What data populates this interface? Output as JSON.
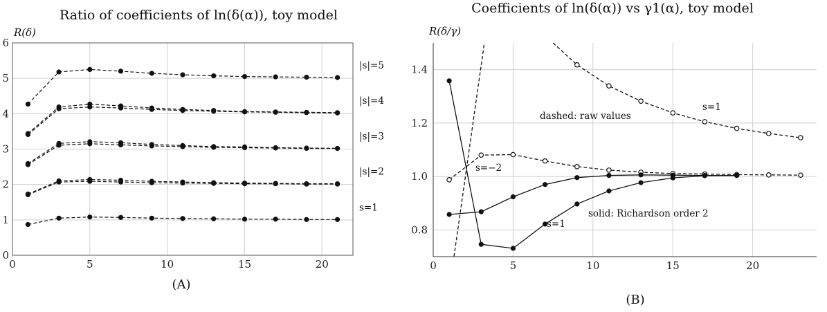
{
  "chart_data": [
    {
      "type": "line",
      "title": "Ratio of coefficients of ln(δ(α)), toy model",
      "ylabel": "R(δ)",
      "xlabel": "",
      "caption": "(A)",
      "xlim": [
        0,
        22
      ],
      "ylim": [
        0,
        6
      ],
      "xticks": [
        "0",
        "5",
        "10",
        "15",
        "20"
      ],
      "yticks": [
        "0",
        "1",
        "2",
        "3",
        "4",
        "5",
        "6"
      ],
      "grid": true,
      "x": [
        1,
        3,
        5,
        7,
        9,
        11,
        13,
        15,
        17,
        19,
        21
      ],
      "series": [
        {
          "name": "|s|=5",
          "style": "dashed",
          "values": [
            4.27,
            5.18,
            5.25,
            5.2,
            5.14,
            5.1,
            5.07,
            5.05,
            5.04,
            5.03,
            5.02
          ]
        },
        {
          "name": "|s|=4",
          "style": "dashed",
          "values": [
            3.44,
            4.19,
            4.27,
            4.22,
            4.16,
            4.12,
            4.09,
            4.06,
            4.05,
            4.04,
            4.03
          ]
        },
        {
          "name": "",
          "style": "dashed",
          "values": [
            3.41,
            4.14,
            4.19,
            4.16,
            4.12,
            4.09,
            4.07,
            4.05,
            4.04,
            4.03,
            4.02
          ]
        },
        {
          "name": "|s|=3",
          "style": "dashed",
          "values": [
            2.59,
            3.16,
            3.21,
            3.18,
            3.13,
            3.1,
            3.07,
            3.06,
            3.04,
            3.03,
            3.02
          ]
        },
        {
          "name": "",
          "style": "dashed",
          "values": [
            2.56,
            3.11,
            3.15,
            3.12,
            3.09,
            3.07,
            3.05,
            3.04,
            3.03,
            3.02,
            3.02
          ]
        },
        {
          "name": "|s|=2",
          "style": "dashed",
          "values": [
            1.73,
            2.1,
            2.14,
            2.12,
            2.09,
            2.07,
            2.05,
            2.04,
            2.03,
            2.02,
            2.02
          ]
        },
        {
          "name": "",
          "style": "dashed",
          "values": [
            1.71,
            2.07,
            2.09,
            2.07,
            2.05,
            2.04,
            2.03,
            2.02,
            2.02,
            2.01,
            2.01
          ]
        },
        {
          "name": "s=1",
          "style": "dashed",
          "values": [
            0.87,
            1.05,
            1.08,
            1.07,
            1.05,
            1.04,
            1.03,
            1.02,
            1.02,
            1.01,
            1.01
          ]
        }
      ]
    },
    {
      "type": "line",
      "title": "Coefficients of ln(δ(α)) vs γ1(α), toy model",
      "ylabel": "R(δ/γ)",
      "xlabel": "",
      "caption": "(B)",
      "xlim": [
        0,
        24
      ],
      "ylim": [
        0.7,
        1.5
      ],
      "xticks": [
        "0",
        "5",
        "10",
        "15",
        "20"
      ],
      "yticks": [
        "0.8",
        "1.0",
        "1.2",
        "1.4"
      ],
      "grid": true,
      "annotations": [
        "dashed: raw values",
        "solid: Richardson order 2",
        "s=1",
        "s=−2",
        "s=1"
      ],
      "series": [
        {
          "name": "s=1",
          "style": "dashed",
          "marker": "open",
          "x": [
            9,
            11,
            13,
            15,
            17,
            19,
            21,
            23
          ],
          "values": [
            1.418,
            1.339,
            1.282,
            1.238,
            1.205,
            1.18,
            1.161,
            1.145
          ],
          "curve_x": [
            7.5,
            9,
            11,
            13,
            15,
            17,
            19,
            21,
            23
          ],
          "curve_y": [
            1.5,
            1.418,
            1.339,
            1.282,
            1.238,
            1.205,
            1.18,
            1.161,
            1.145
          ]
        },
        {
          "name": "s=−2",
          "style": "dashed",
          "marker": "open",
          "x": [
            1,
            3,
            5,
            7,
            9,
            11,
            13,
            15,
            17,
            19,
            21,
            23
          ],
          "values": [
            0.988,
            1.08,
            1.082,
            1.058,
            1.037,
            1.024,
            1.016,
            1.011,
            1.009,
            1.007,
            1.006,
            1.005
          ]
        },
        {
          "name": "",
          "style": "dashed",
          "marker": "none",
          "x": [
            1.3,
            3.2
          ],
          "values": [
            0.7,
            1.5
          ]
        },
        {
          "name": "",
          "style": "solid",
          "marker": "filled",
          "x": [
            1,
            3,
            5,
            7,
            9,
            11,
            13,
            15,
            17,
            19
          ],
          "values": [
            0.858,
            0.868,
            0.924,
            0.97,
            0.996,
            1.004,
            1.006,
            1.005,
            1.004,
            1.004
          ]
        },
        {
          "name": "s=1",
          "style": "solid",
          "marker": "filled",
          "x": [
            1,
            3,
            5,
            7,
            9,
            11,
            13,
            15,
            17,
            19
          ],
          "values": [
            1.358,
            0.746,
            0.731,
            0.822,
            0.897,
            0.946,
            0.977,
            0.995,
            1.003,
            1.004
          ]
        }
      ]
    }
  ]
}
